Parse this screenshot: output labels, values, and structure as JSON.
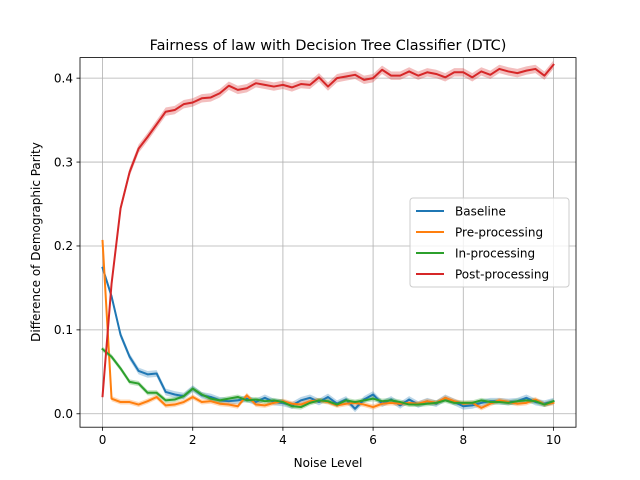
{
  "chart_data": {
    "type": "line",
    "title": "Fairness of law with Decision Tree Classifier (DTC)",
    "xlabel": "Noise Level",
    "ylabel": "Difference of Demographic Parity",
    "xlim": [
      -0.5,
      10.5
    ],
    "ylim": [
      -0.016,
      0.4245
    ],
    "xticks": [
      0,
      2,
      4,
      6,
      8,
      10
    ],
    "yticks": [
      0.0,
      0.1,
      0.2,
      0.3,
      0.4
    ],
    "xtick_labels": [
      "0",
      "2",
      "4",
      "6",
      "8",
      "10"
    ],
    "ytick_labels": [
      "0.0",
      "0.1",
      "0.2",
      "0.3",
      "0.4"
    ],
    "grid": true,
    "legend_position": "center-right",
    "band_note": "shaded confidence band around each line",
    "x": [
      0,
      0.2,
      0.4,
      0.6,
      0.8,
      1.0,
      1.2,
      1.4,
      1.6,
      1.8,
      2.0,
      2.2,
      2.4,
      2.6,
      2.8,
      3.0,
      3.2,
      3.4,
      3.6,
      3.8,
      4.0,
      4.2,
      4.4,
      4.6,
      4.8,
      5.0,
      5.2,
      5.4,
      5.6,
      5.8,
      6.0,
      6.2,
      6.4,
      6.6,
      6.8,
      7.0,
      7.2,
      7.4,
      7.6,
      7.8,
      8.0,
      8.2,
      8.4,
      8.6,
      8.8,
      9.0,
      9.2,
      9.4,
      9.6,
      9.8,
      10.0
    ],
    "series": [
      {
        "name": "Baseline",
        "color": "#1f77b4",
        "band": 0.004,
        "values": [
          0.174,
          0.14,
          0.094,
          0.068,
          0.051,
          0.047,
          0.048,
          0.026,
          0.023,
          0.021,
          0.03,
          0.022,
          0.02,
          0.016,
          0.015,
          0.016,
          0.018,
          0.014,
          0.019,
          0.014,
          0.013,
          0.01,
          0.016,
          0.019,
          0.014,
          0.02,
          0.012,
          0.017,
          0.006,
          0.017,
          0.023,
          0.012,
          0.017,
          0.01,
          0.017,
          0.011,
          0.015,
          0.012,
          0.019,
          0.014,
          0.009,
          0.01,
          0.013,
          0.015,
          0.015,
          0.014,
          0.015,
          0.019,
          0.014,
          0.012,
          0.015
        ]
      },
      {
        "name": "Pre-processing",
        "color": "#ff7f0e",
        "band": 0.003,
        "values": [
          0.206,
          0.018,
          0.014,
          0.014,
          0.011,
          0.015,
          0.02,
          0.01,
          0.011,
          0.014,
          0.02,
          0.014,
          0.015,
          0.012,
          0.011,
          0.009,
          0.022,
          0.011,
          0.01,
          0.013,
          0.015,
          0.012,
          0.011,
          0.015,
          0.016,
          0.014,
          0.01,
          0.012,
          0.013,
          0.011,
          0.008,
          0.012,
          0.013,
          0.012,
          0.013,
          0.012,
          0.015,
          0.013,
          0.019,
          0.015,
          0.012,
          0.013,
          0.007,
          0.012,
          0.016,
          0.014,
          0.012,
          0.013,
          0.017,
          0.011,
          0.013
        ]
      },
      {
        "name": "In-processing",
        "color": "#2ca02c",
        "band": 0.003,
        "values": [
          0.077,
          0.068,
          0.054,
          0.038,
          0.036,
          0.025,
          0.025,
          0.016,
          0.017,
          0.021,
          0.03,
          0.023,
          0.018,
          0.016,
          0.018,
          0.02,
          0.016,
          0.017,
          0.015,
          0.016,
          0.014,
          0.009,
          0.008,
          0.013,
          0.016,
          0.015,
          0.011,
          0.016,
          0.014,
          0.016,
          0.018,
          0.015,
          0.016,
          0.014,
          0.011,
          0.011,
          0.012,
          0.013,
          0.016,
          0.013,
          0.013,
          0.013,
          0.016,
          0.014,
          0.014,
          0.013,
          0.015,
          0.016,
          0.015,
          0.011,
          0.015
        ]
      },
      {
        "name": "Post-processing",
        "color": "#d62728",
        "band": 0.005,
        "values": [
          0.021,
          0.155,
          0.245,
          0.288,
          0.316,
          0.33,
          0.345,
          0.36,
          0.362,
          0.369,
          0.371,
          0.376,
          0.377,
          0.382,
          0.391,
          0.386,
          0.388,
          0.394,
          0.392,
          0.39,
          0.392,
          0.389,
          0.393,
          0.392,
          0.401,
          0.39,
          0.4,
          0.402,
          0.404,
          0.398,
          0.4,
          0.41,
          0.403,
          0.403,
          0.408,
          0.403,
          0.407,
          0.405,
          0.401,
          0.407,
          0.407,
          0.401,
          0.408,
          0.404,
          0.411,
          0.408,
          0.406,
          0.409,
          0.411,
          0.403,
          0.416
        ]
      }
    ]
  }
}
